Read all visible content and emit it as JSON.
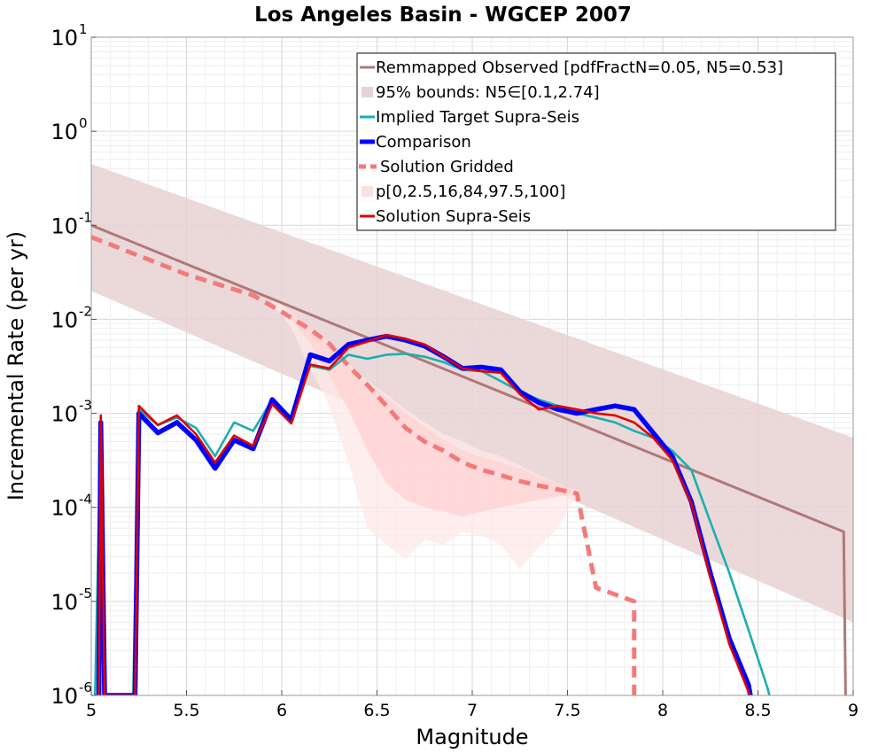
{
  "chart_data": {
    "type": "line",
    "title": "Los Angeles Basin - WGCEP 2007",
    "xlabel": "Magnitude",
    "ylabel": "Incremental Rate (per yr)",
    "xlim": [
      5,
      9
    ],
    "ylim_log10": [
      -6,
      1
    ],
    "yscale": "log",
    "xticks": [
      "5",
      "5.5",
      "6",
      "6.5",
      "7",
      "7.5",
      "8",
      "8.5",
      "9"
    ],
    "yticks": [
      {
        "base": "10",
        "exp": "1"
      },
      {
        "base": "10",
        "exp": "0"
      },
      {
        "base": "10",
        "exp": "-1"
      },
      {
        "base": "10",
        "exp": "-2"
      },
      {
        "base": "10",
        "exp": "-3"
      },
      {
        "base": "10",
        "exp": "-4"
      },
      {
        "base": "10",
        "exp": "-5"
      },
      {
        "base": "10",
        "exp": "-6"
      }
    ],
    "grid": true,
    "legend": {
      "position": "top-right",
      "entries": [
        {
          "label": "Remmapped Observed [pdfFractN=0.05, N5=0.53]",
          "color": "#b07878",
          "style": "line"
        },
        {
          "label": "95% bounds: N5∈[0.1,2.74]",
          "color": "#e8d2d4",
          "style": "band"
        },
        {
          "label": "Implied Target Supra-Seis",
          "color": "#1aafaf",
          "style": "line"
        },
        {
          "label": "Comparison",
          "color": "#0000ff",
          "style": "thick"
        },
        {
          "label": "Solution Gridded",
          "color": "#f47a7a",
          "style": "dashed"
        },
        {
          "label": "p[0,2.5,16,84,97.5,100]",
          "color": "#ffdede",
          "style": "band"
        },
        {
          "label": "Solution Supra-Seis",
          "color": "#e00000",
          "style": "line"
        }
      ]
    },
    "bands": [
      {
        "name": "95% bounds",
        "color": "#e8d2d4",
        "x": [
          5,
          9
        ],
        "lower": [
          0.02,
          6e-06
        ],
        "upper": [
          0.45,
          0.00055
        ]
      },
      {
        "name": "p outer",
        "color": "#ffe8e8",
        "x": [
          5.95,
          6.05,
          6.15,
          6.25,
          6.35,
          6.45,
          6.55,
          6.65,
          6.75,
          6.85,
          6.95,
          7.05,
          7.15,
          7.25,
          7.35,
          7.45,
          7.55
        ],
        "lower": [
          0.015,
          0.008,
          0.003,
          0.0012,
          0.0003,
          6e-05,
          4e-05,
          2.8e-05,
          4.5e-05,
          4e-05,
          5.5e-05,
          5e-05,
          4e-05,
          2.2e-05,
          3.8e-05,
          6e-05,
          0.00014
        ],
        "upper": [
          0.017,
          0.012,
          0.008,
          0.0055,
          0.0034,
          0.0022,
          0.0016,
          0.0011,
          0.0008,
          0.0006,
          0.0005,
          0.0004,
          0.00035,
          0.00028,
          0.00022,
          0.00018,
          0.00015
        ]
      },
      {
        "name": "p inner",
        "color": "#ffd2d2",
        "x": [
          6.05,
          6.15,
          6.25,
          6.35,
          6.45,
          6.55,
          6.65,
          6.75,
          6.85,
          6.95,
          7.05,
          7.15,
          7.25,
          7.35,
          7.45,
          7.55
        ],
        "lower": [
          0.01,
          0.0055,
          0.0025,
          0.0011,
          0.0004,
          0.00018,
          0.00012,
          0.0001,
          9e-05,
          8e-05,
          9e-05,
          0.0001,
          0.00011,
          0.00012,
          0.00013,
          0.00014
        ],
        "upper": [
          0.012,
          0.008,
          0.0052,
          0.0032,
          0.0021,
          0.0015,
          0.001,
          0.00072,
          0.00052,
          0.0004,
          0.00034,
          0.0003,
          0.00026,
          0.00021,
          0.00018,
          0.00015
        ]
      }
    ],
    "series": [
      {
        "name": "Remmapped Observed",
        "color": "#b07878",
        "width": 3,
        "x": [
          5.0,
          8.95,
          8.96
        ],
        "y": [
          0.1,
          5.5e-05,
          1e-06
        ]
      },
      {
        "name": "Solution Gridded",
        "color": "#f47a7a",
        "width": 5,
        "dash": "13,8",
        "x": [
          5.0,
          5.5,
          5.85,
          6.0,
          6.15,
          6.25,
          6.35,
          6.45,
          6.55,
          6.65,
          6.75,
          6.85,
          6.95,
          7.05,
          7.15,
          7.25,
          7.35,
          7.45,
          7.55,
          7.65,
          7.85,
          7.85
        ],
        "y": [
          0.075,
          0.03,
          0.018,
          0.012,
          0.0078,
          0.0055,
          0.0032,
          0.002,
          0.0012,
          0.0007,
          0.0005,
          0.0004,
          0.0003,
          0.00025,
          0.00022,
          0.00019,
          0.00017,
          0.000155,
          0.00014,
          1.4e-05,
          1e-05,
          1e-06
        ]
      },
      {
        "name": "Implied Target Supra-Seis",
        "color": "#1aafaf",
        "width": 2.6,
        "x": [
          5.02,
          5.05,
          5.07,
          5.22,
          5.25,
          5.35,
          5.45,
          5.55,
          5.65,
          5.75,
          5.85,
          5.95,
          6.05,
          6.15,
          6.25,
          6.35,
          6.45,
          6.55,
          6.65,
          6.75,
          6.85,
          6.95,
          7.05,
          7.15,
          7.25,
          7.35,
          7.45,
          7.55,
          7.65,
          7.75,
          7.85,
          7.95,
          8.05,
          8.15,
          8.25,
          8.35,
          8.45,
          8.55,
          8.56
        ],
        "y": [
          1e-06,
          0.0008,
          1e-06,
          1e-06,
          0.0011,
          0.00075,
          0.0009,
          0.0007,
          0.00035,
          0.0008,
          0.00065,
          0.0014,
          0.0009,
          0.0032,
          0.0029,
          0.0042,
          0.0038,
          0.0042,
          0.0043,
          0.004,
          0.0035,
          0.0029,
          0.0028,
          0.0022,
          0.0017,
          0.0014,
          0.0012,
          0.001,
          0.0009,
          0.0008,
          0.00065,
          0.00055,
          0.0004,
          0.00025,
          7e-05,
          2e-05,
          5e-06,
          1.2e-06,
          1e-06
        ]
      },
      {
        "name": "Comparison",
        "color": "#0000ff",
        "width": 5.5,
        "x": [
          5.04,
          5.05,
          5.07,
          5.23,
          5.25,
          5.35,
          5.45,
          5.55,
          5.65,
          5.75,
          5.85,
          5.95,
          6.05,
          6.15,
          6.25,
          6.35,
          6.45,
          6.55,
          6.65,
          6.75,
          6.85,
          6.95,
          7.05,
          7.15,
          7.25,
          7.35,
          7.45,
          7.55,
          7.65,
          7.75,
          7.85,
          7.95,
          8.05,
          8.15,
          8.25,
          8.35,
          8.45,
          8.46
        ],
        "y": [
          1e-06,
          0.0008,
          1e-06,
          1e-06,
          0.001,
          0.00062,
          0.0008,
          0.00052,
          0.00026,
          0.00052,
          0.00042,
          0.0014,
          0.00085,
          0.0042,
          0.0036,
          0.0054,
          0.006,
          0.0066,
          0.006,
          0.0052,
          0.004,
          0.003,
          0.0031,
          0.0029,
          0.0017,
          0.0013,
          0.0011,
          0.001,
          0.0011,
          0.0012,
          0.0011,
          0.00062,
          0.00035,
          0.000115,
          2e-05,
          4e-06,
          1.3e-06,
          1e-06
        ]
      },
      {
        "name": "Solution Supra-Seis",
        "color": "#e00000",
        "width": 2.6,
        "x": [
          5.04,
          5.05,
          5.07,
          5.23,
          5.25,
          5.35,
          5.45,
          5.55,
          5.65,
          5.75,
          5.85,
          5.95,
          6.05,
          6.15,
          6.25,
          6.35,
          6.45,
          6.55,
          6.65,
          6.75,
          6.85,
          6.95,
          7.05,
          7.15,
          7.25,
          7.35,
          7.45,
          7.55,
          7.65,
          7.75,
          7.85,
          7.95,
          8.05,
          8.15,
          8.25,
          8.35,
          8.45,
          8.46
        ],
        "y": [
          1e-06,
          0.00095,
          1e-06,
          1e-06,
          0.0012,
          0.00075,
          0.00095,
          0.0006,
          0.0003,
          0.00058,
          0.00045,
          0.00125,
          0.00078,
          0.0033,
          0.003,
          0.005,
          0.0058,
          0.0068,
          0.0062,
          0.0054,
          0.004,
          0.003,
          0.0028,
          0.0027,
          0.0016,
          0.0011,
          0.0012,
          0.0011,
          0.001,
          0.00095,
          0.0008,
          0.00055,
          0.00032,
          0.00011,
          1.8e-05,
          3.5e-06,
          1.1e-06,
          1e-06
        ]
      }
    ]
  }
}
